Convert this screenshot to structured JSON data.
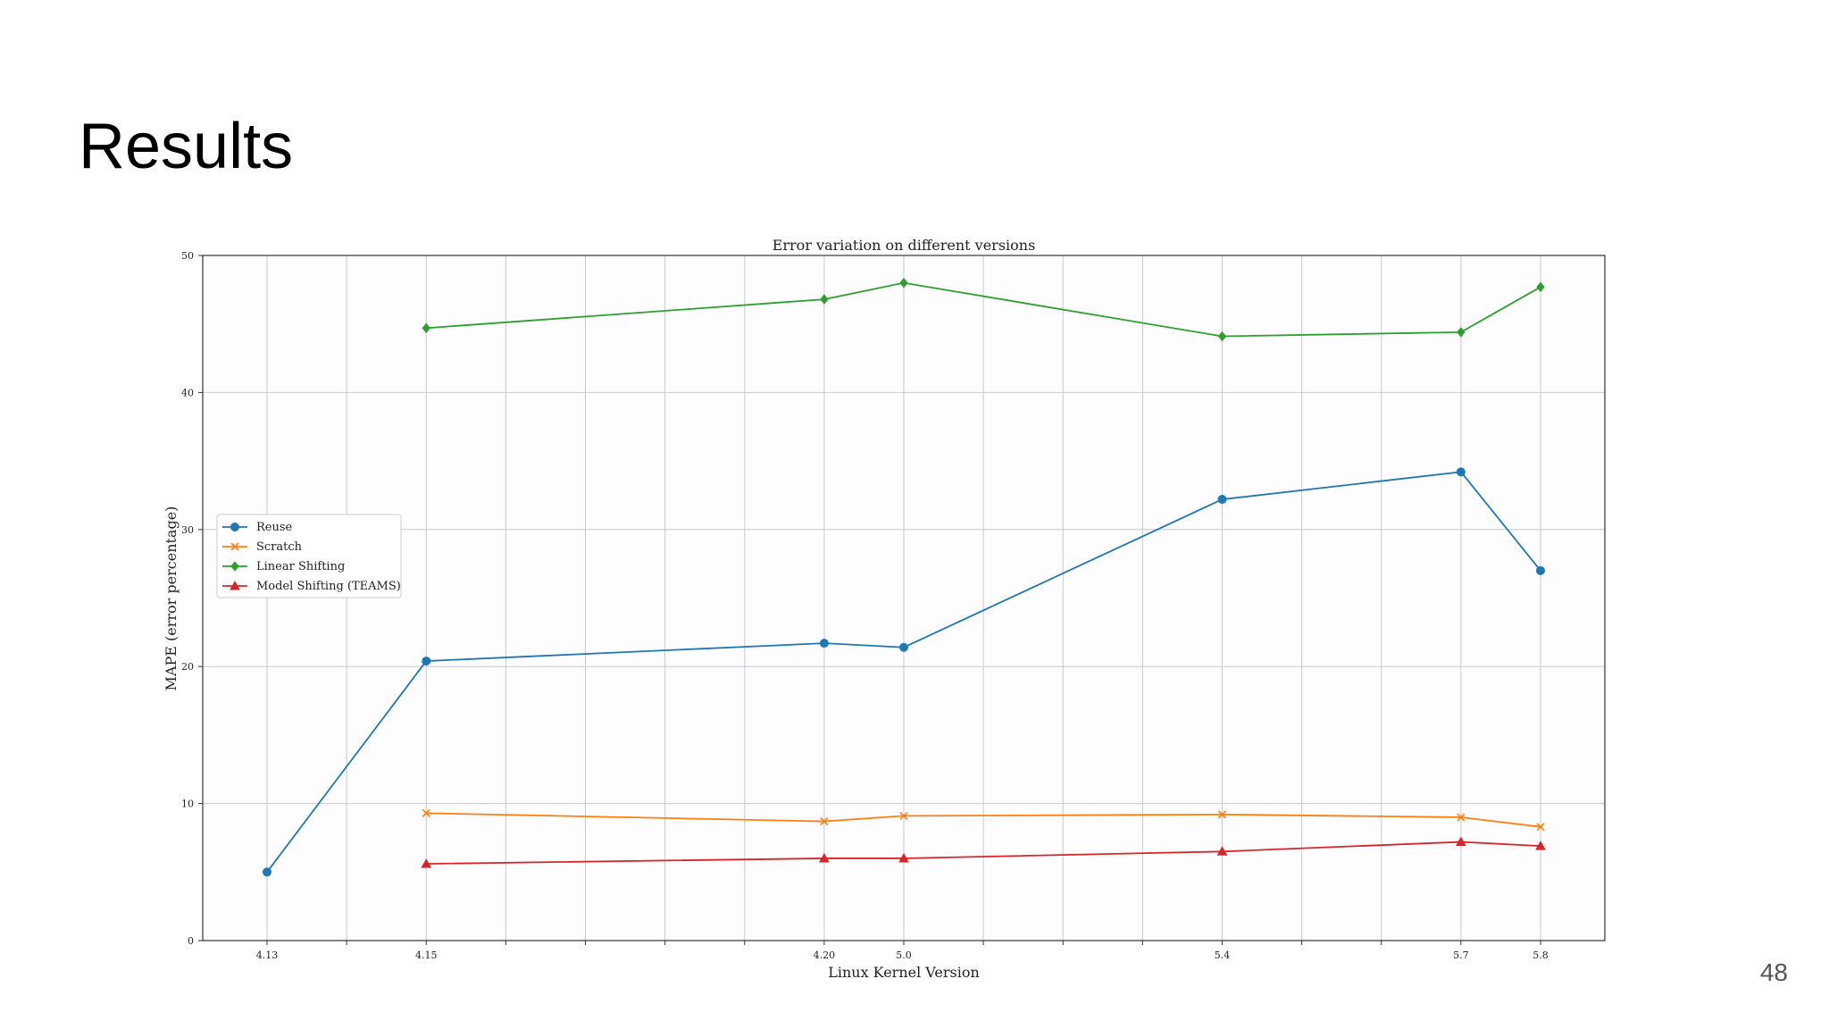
{
  "title": "Results",
  "page_number": "48",
  "chart_data": {
    "type": "line",
    "title": "Error variation on different versions",
    "x_label": "Linux Kernel Version",
    "y_label": "MAPE (error percentage)",
    "categories": [
      "4.13",
      null,
      "4.15",
      null,
      null,
      null,
      null,
      "4.20",
      "5.0",
      null,
      null,
      null,
      "5.4",
      null,
      null,
      "5.7",
      "5.8"
    ],
    "ylim": [
      0,
      50
    ],
    "yticks": [
      0,
      10,
      20,
      30,
      40,
      50
    ],
    "grid": true,
    "legend": "left",
    "series": [
      {
        "name": "Reuse",
        "color": "#1f77b4",
        "marker": "circle",
        "x": [
          "4.13",
          "4.15",
          "4.20",
          "5.0",
          "5.4",
          "5.7",
          "5.8"
        ],
        "values": [
          5.0,
          20.4,
          21.7,
          21.4,
          32.2,
          34.2,
          27.0
        ]
      },
      {
        "name": "Scratch",
        "color": "#ff7f0e",
        "marker": "x",
        "x": [
          "4.15",
          "4.20",
          "5.0",
          "5.4",
          "5.7",
          "5.8"
        ],
        "values": [
          9.3,
          8.7,
          9.1,
          9.2,
          9.0,
          8.3
        ]
      },
      {
        "name": "Linear Shifting",
        "color": "#2ca02c",
        "marker": "diamond",
        "x": [
          "4.15",
          "4.20",
          "5.0",
          "5.4",
          "5.7",
          "5.8"
        ],
        "values": [
          44.7,
          46.8,
          48.0,
          44.1,
          44.4,
          47.7
        ]
      },
      {
        "name": "Model Shifting (TEAMS)",
        "color": "#d62728",
        "marker": "triangle",
        "x": [
          "4.15",
          "4.20",
          "5.0",
          "5.4",
          "5.7",
          "5.8"
        ],
        "values": [
          5.6,
          6.0,
          6.0,
          6.5,
          7.2,
          6.9
        ]
      }
    ]
  }
}
